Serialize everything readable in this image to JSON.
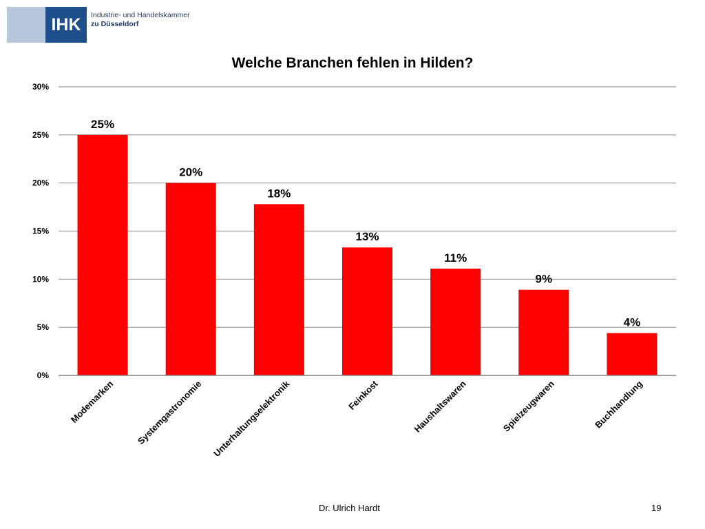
{
  "logo": {
    "abbr": "IHK",
    "line1": "Industrie- und Handelskammer",
    "line2": "zu Düsseldorf"
  },
  "footer": {
    "author": "Dr. Ulrich Hardt",
    "page": "19"
  },
  "colors": {
    "bar": "#ff0000",
    "grid": "#999999"
  },
  "chart_data": {
    "type": "bar",
    "title": "Welche Branchen fehlen in Hilden?",
    "xlabel": "",
    "ylabel": "",
    "categories": [
      "Modemarken",
      "Systemgastronomie",
      "Unterhaltungselektronik",
      "Feinkost",
      "Haushaltswaren",
      "Spielzeugwaren",
      "Buchhandlung"
    ],
    "values": [
      25,
      20,
      17.8,
      13.3,
      11.1,
      8.9,
      4.4
    ],
    "data_labels": [
      "25%",
      "20%",
      "18%",
      "13%",
      "11%",
      "9%",
      "4%"
    ],
    "y_ticks": [
      0,
      5,
      10,
      15,
      20,
      25,
      30
    ],
    "y_tick_labels": [
      "0%",
      "5%",
      "10%",
      "15%",
      "20%",
      "25%",
      "30%"
    ],
    "ylim": [
      0,
      30
    ],
    "grid": true,
    "legend": "none"
  }
}
